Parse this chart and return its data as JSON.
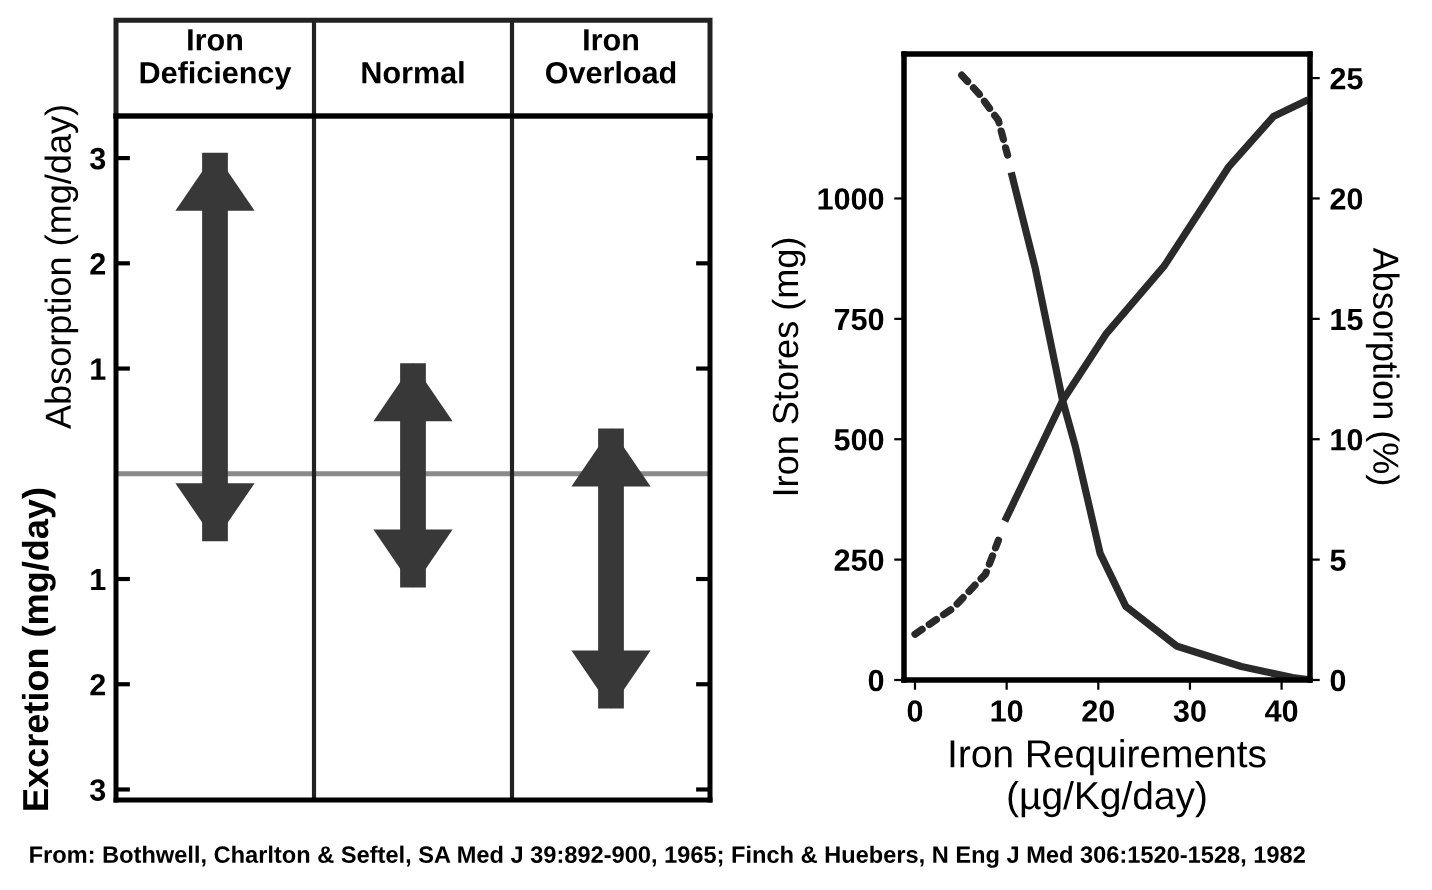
{
  "chart_data": [
    {
      "type": "bar",
      "categories": [
        "Iron\nDeficiency",
        "Normal",
        "Iron\nOverload"
      ],
      "base": [
        -0.64,
        -1.08,
        -2.23
      ],
      "values": [
        3.69,
        2.13,
        2.66
      ],
      "color": "#383838",
      "ylabel": "Absorption (mg/day)",
      "annotations": [
        "Excretion (mg/day)"
      ],
      "ylim": [
        -3.1,
        3.4
      ],
      "yticks": [
        {
          "value": -3,
          "label": "3"
        },
        {
          "value": -2,
          "label": "2"
        },
        {
          "value": -1,
          "label": "1"
        },
        1,
        2,
        3
      ],
      "ref_lines": [
        {
          "axis": "y",
          "value": 0,
          "label": null,
          "color": "#8a8a8a"
        }
      ]
    },
    {
      "type": "line",
      "xlabel": "Iron Requirements\n(µg/Kg/day)",
      "ylabel": "Iron Stores (mg)",
      "y2label": "Absorption (%)",
      "xlim": [
        -1.2,
        43.1
      ],
      "ylim": [
        0,
        1300
      ],
      "y2lim": [
        0,
        26
      ],
      "xticks": [
        0,
        10,
        20,
        30,
        40
      ],
      "yticks": [
        0,
        250,
        500,
        750,
        1000
      ],
      "y2ticks": [
        0,
        5,
        10,
        15,
        20,
        25
      ],
      "series": [
        {
          "color": "#2a2a2a",
          "line_style": "dotted",
          "x": [
            5.1,
            7.0,
            9.1,
            10.1
          ],
          "values": [
            1256,
            1217,
            1162,
            1090
          ]
        },
        {
          "color": "#2a2a2a",
          "line_style": "solid",
          "x": [
            10.5,
            13.1,
            16.1,
            17.5,
            20.2,
            23.0,
            28.6,
            35.6,
            41.2,
            43.1
          ],
          "values": [
            1054,
            857,
            581,
            485,
            263,
            153,
            70,
            28,
            5,
            0
          ]
        },
        {
          "color": "#2a2a2a",
          "line_style": "dotted",
          "axis": "y2",
          "x": [
            0,
            4.2,
            7.7,
            9.1
          ],
          "values": [
            1.9,
            3.0,
            4.4,
            5.8
          ]
        },
        {
          "color": "#2a2a2a",
          "line_style": "solid",
          "axis": "y2",
          "x": [
            9.8,
            16.1,
            20.9,
            27.2,
            34.2,
            39.1,
            42.9
          ],
          "values": [
            6.6,
            11.6,
            14.4,
            17.2,
            21.3,
            23.4,
            24.1
          ]
        }
      ],
      "annotations": [
        "From: Bothwell, Charlton & Seftel, SA Med J 39:892-900, 1965; Finch & Huebers, N Eng J Med 306:1520-1528, 1982"
      ]
    }
  ]
}
